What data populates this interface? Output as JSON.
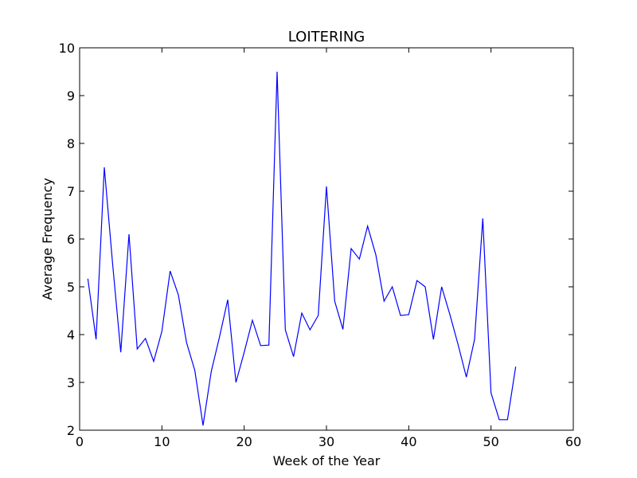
{
  "chart_data": {
    "type": "line",
    "title": "LOITERING",
    "xlabel": "Week of the Year",
    "ylabel": "Average Frequency",
    "xlim": [
      0,
      60
    ],
    "ylim": [
      2,
      10
    ],
    "xticks": [
      0,
      10,
      20,
      30,
      40,
      50,
      60
    ],
    "yticks": [
      2,
      3,
      4,
      5,
      6,
      7,
      8,
      9,
      10
    ],
    "grid": false,
    "color": "#0000ff",
    "series": [
      {
        "x": [
          1,
          2,
          3,
          4,
          5,
          6,
          7,
          8,
          9,
          10,
          11,
          12,
          13,
          14,
          15,
          16,
          17,
          18,
          19,
          20,
          21,
          22,
          23,
          24,
          25,
          26,
          27,
          28,
          29,
          30,
          31,
          32,
          33,
          34,
          35,
          36,
          37,
          38,
          39,
          40,
          41,
          42,
          43,
          44,
          45,
          46,
          47,
          48,
          49,
          50,
          51,
          52,
          53
        ],
        "y": [
          5.17,
          3.9,
          7.5,
          5.5,
          3.63,
          6.1,
          3.7,
          3.92,
          3.44,
          4.07,
          5.33,
          4.83,
          3.83,
          3.25,
          2.1,
          3.23,
          3.95,
          4.73,
          3.0,
          3.63,
          4.3,
          3.77,
          3.78,
          9.5,
          4.1,
          3.54,
          4.45,
          4.1,
          4.4,
          7.1,
          4.7,
          4.11,
          5.8,
          5.58,
          6.27,
          5.67,
          4.7,
          5.0,
          4.4,
          4.42,
          5.13,
          5.0,
          3.9,
          5.0,
          4.42,
          3.79,
          3.11,
          3.9,
          6.43,
          2.78,
          2.22,
          2.22,
          3.33
        ]
      }
    ]
  }
}
